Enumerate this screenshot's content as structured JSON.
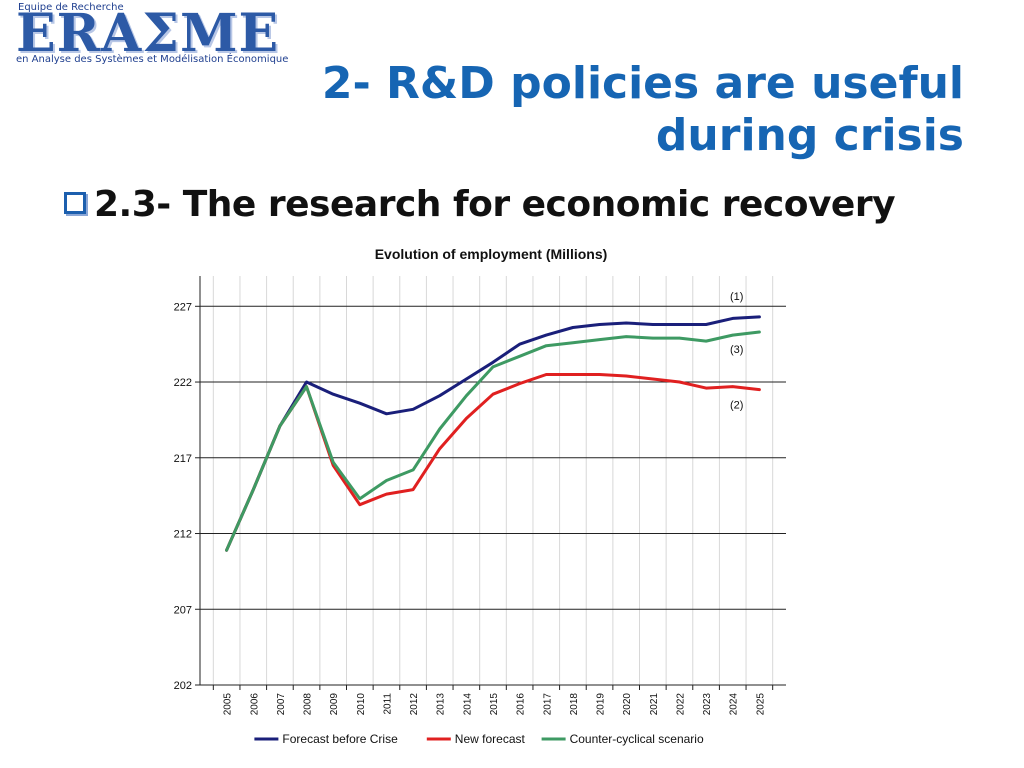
{
  "logo": {
    "top_text": "Equipe de Recherche",
    "word": "ERAΣME",
    "bottom_text": "en Analyse des Systèmes et Modélisation Économique"
  },
  "slide": {
    "title_line1": "2- R&D policies are useful",
    "title_line2": "during crisis",
    "subtitle": "2.3- The research for economic recovery"
  },
  "colors": {
    "title": "#1665b3",
    "forecast_before": "#1a1f7a",
    "new_forecast": "#e02020",
    "counter_cyclical": "#3e9a63"
  },
  "chart_data": {
    "type": "line",
    "title": "Evolution of employment (Millions)",
    "x": [
      "2005",
      "2006",
      "2007",
      "2008",
      "2009",
      "2010",
      "2011",
      "2012",
      "2013",
      "2014",
      "2015",
      "2016",
      "2017",
      "2018",
      "2019",
      "2020",
      "2021",
      "2022",
      "2023",
      "2024",
      "2025"
    ],
    "ylim": [
      202,
      229
    ],
    "yticks": [
      202,
      207,
      212,
      217,
      222,
      227
    ],
    "grid": true,
    "legend_position": "bottom",
    "series": [
      {
        "name": "Forecast before Crise",
        "color": "#1a1f7a",
        "values": [
          210.9,
          214.9,
          219.1,
          222.0,
          221.2,
          220.6,
          219.9,
          220.2,
          221.1,
          222.2,
          223.3,
          224.5,
          225.1,
          225.6,
          225.8,
          225.9,
          225.8,
          225.8,
          225.8,
          226.2,
          226.3
        ]
      },
      {
        "name": "New forecast",
        "color": "#e02020",
        "values": [
          210.9,
          214.9,
          219.1,
          221.7,
          216.5,
          213.9,
          214.6,
          214.9,
          217.6,
          219.6,
          221.2,
          221.9,
          222.5,
          222.5,
          222.5,
          222.4,
          222.2,
          222.0,
          221.6,
          221.7,
          221.5
        ]
      },
      {
        "name": "Counter-cyclical scenario",
        "color": "#3e9a63",
        "values": [
          210.9,
          214.9,
          219.1,
          221.7,
          216.7,
          214.3,
          215.5,
          216.2,
          218.9,
          221.1,
          223.0,
          223.7,
          224.4,
          224.6,
          224.8,
          225.0,
          224.9,
          224.9,
          224.7,
          225.1,
          225.3
        ]
      }
    ],
    "annotations": [
      {
        "text": "(1)",
        "series": 0
      },
      {
        "text": "(3)",
        "series": 2
      },
      {
        "text": "(2)",
        "series": 1
      }
    ]
  }
}
